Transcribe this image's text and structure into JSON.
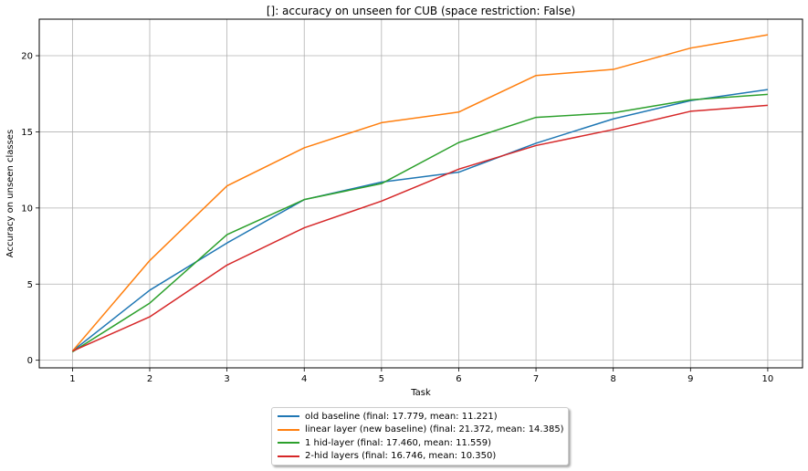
{
  "chart_data": {
    "type": "line",
    "title": "[]: accuracy on unseen for CUB (space restriction: False)",
    "xlabel": "Task",
    "ylabel": "Accuracy on unseen classes",
    "x": [
      1,
      2,
      3,
      4,
      5,
      6,
      7,
      8,
      9,
      10
    ],
    "xlim": [
      0.57,
      10.45
    ],
    "ylim": [
      -0.5,
      22.4
    ],
    "xticks": [
      1,
      2,
      3,
      4,
      5,
      6,
      7,
      8,
      9,
      10
    ],
    "yticks": [
      0,
      5,
      10,
      15,
      20
    ],
    "grid": true,
    "legend_position": "below",
    "series": [
      {
        "name": "old baseline (final:  17.779, mean:  11.221)",
        "color": "#1f77b4",
        "values": [
          0.6,
          4.6,
          7.7,
          10.55,
          11.7,
          12.35,
          14.25,
          15.85,
          17.05,
          17.779
        ]
      },
      {
        "name": "linear layer (new baseline) (final:  21.372, mean:  14.385)",
        "color": "#ff7f0e",
        "values": [
          0.6,
          6.55,
          11.45,
          13.95,
          15.6,
          16.3,
          18.7,
          19.1,
          20.5,
          21.372
        ]
      },
      {
        "name": "1 hid-layer (final:  17.460, mean:  11.559)",
        "color": "#2ca02c",
        "values": [
          0.55,
          3.75,
          8.25,
          10.55,
          11.6,
          14.3,
          15.95,
          16.25,
          17.1,
          17.46
        ]
      },
      {
        "name": "2-hid layers (final:  16.746, mean:  10.350)",
        "color": "#d62728",
        "values": [
          0.6,
          2.85,
          6.25,
          8.7,
          10.45,
          12.55,
          14.1,
          15.15,
          16.35,
          16.746
        ]
      }
    ]
  }
}
